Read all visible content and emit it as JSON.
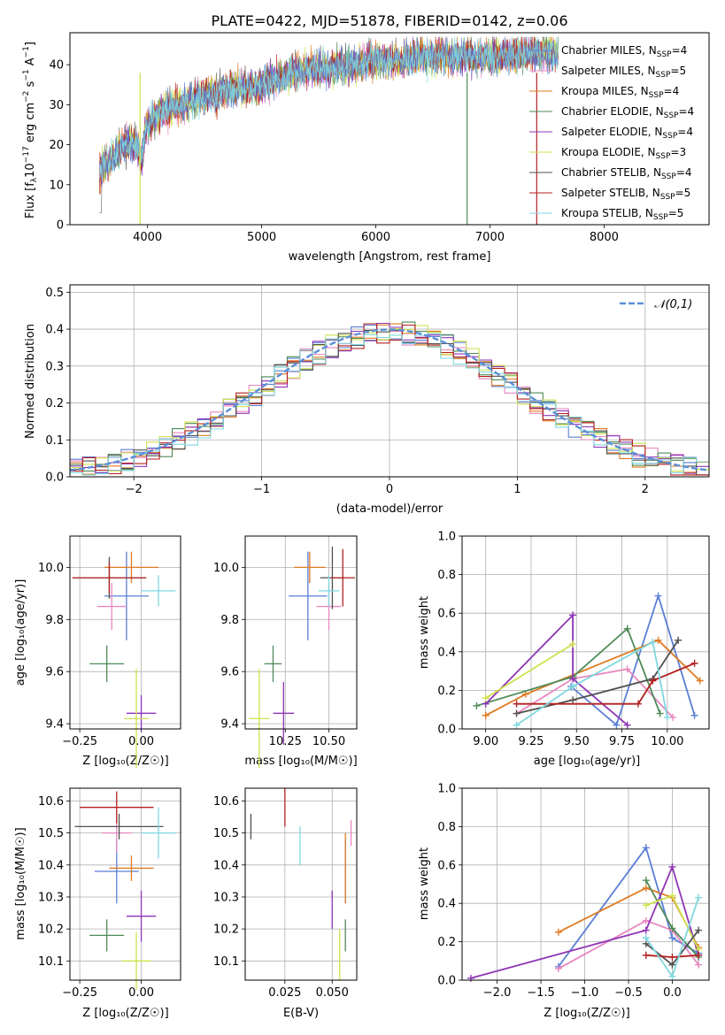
{
  "figure": {
    "title": "PLATE=0422, MJD=51878, FIBERID=0142, z=0.06"
  },
  "models": [
    {
      "label": "Chabrier MILES, N_SSP=4",
      "lib": "Chabrier MILES",
      "n": "4",
      "color": "#5b7fd6"
    },
    {
      "label": "Salpeter MILES, N_SSP=5",
      "lib": "Salpeter MILES",
      "n": "5",
      "color": "#e887c0"
    },
    {
      "label": "Kroupa MILES, N_SSP=4",
      "lib": "Kroupa MILES",
      "n": "4",
      "color": "#e07b22"
    },
    {
      "label": "Chabrier ELODIE, N_SSP=4",
      "lib": "Chabrier ELODIE",
      "n": "4",
      "color": "#4e8a57"
    },
    {
      "label": "Salpeter ELODIE, N_SSP=4",
      "lib": "Salpeter ELODIE",
      "n": "4",
      "color": "#8f35b6"
    },
    {
      "label": "Kroupa ELODIE, N_SSP=3",
      "lib": "Kroupa ELODIE",
      "n": "3",
      "color": "#cfe24e"
    },
    {
      "label": "Chabrier STELIB, N_SSP=4",
      "lib": "Chabrier STELIB",
      "n": "4",
      "color": "#505050"
    },
    {
      "label": "Salpeter STELIB, N_SSP=5",
      "lib": "Salpeter STELIB",
      "n": "5",
      "color": "#b22020"
    },
    {
      "label": "Kroupa STELIB, N_SSP=5",
      "lib": "Kroupa STELIB",
      "n": "5",
      "color": "#7fd8e0"
    }
  ],
  "chart_data": [
    {
      "id": "spectrum",
      "type": "line",
      "xlabel": "wavelength [Angstrom, rest frame]",
      "ylabel": "Flux [f_λ 10^-17 erg cm^-2 s^-1 A^-1]",
      "xlim": [
        3320,
        8920
      ],
      "ylim": [
        0,
        48
      ],
      "xticks": [
        4000,
        5000,
        6000,
        7000,
        8000
      ],
      "yticks": [
        0,
        10,
        20,
        30,
        40
      ],
      "continuum": [
        [
          3580,
          14
        ],
        [
          3700,
          17
        ],
        [
          3800,
          20
        ],
        [
          3900,
          20
        ],
        [
          3950,
          16
        ],
        [
          3980,
          24
        ],
        [
          4100,
          28
        ],
        [
          4300,
          30
        ],
        [
          4500,
          32
        ],
        [
          4700,
          34
        ],
        [
          4900,
          34
        ],
        [
          5000,
          35
        ],
        [
          5200,
          37
        ],
        [
          5400,
          39
        ],
        [
          5600,
          39
        ],
        [
          5800,
          40
        ],
        [
          6000,
          41
        ],
        [
          6200,
          41
        ],
        [
          6400,
          42
        ],
        [
          6600,
          42
        ],
        [
          6800,
          42
        ],
        [
          7000,
          42
        ],
        [
          7200,
          42
        ],
        [
          7400,
          43
        ],
        [
          7500,
          43
        ],
        [
          7600,
          43
        ]
      ],
      "spikes": [
        {
          "x": 3935,
          "y": 0,
          "color": "#cfe24e"
        },
        {
          "x": 6800,
          "y": 0,
          "color": "#4e8a57"
        },
        {
          "x": 7410,
          "y": 0,
          "color": "#b22020"
        }
      ],
      "legend": "upper right",
      "grid": false
    },
    {
      "id": "residuals",
      "type": "histogram",
      "xlabel": "(data-model)/error",
      "ylabel": "Normed distribution",
      "xlim": [
        -2.5,
        2.5
      ],
      "ylim": [
        0,
        0.52
      ],
      "xticks": [
        -2,
        -1,
        0,
        1,
        2
      ],
      "yticks": [
        0,
        0.1,
        0.2,
        0.3,
        0.4,
        0.5
      ],
      "bin_width": 0.1,
      "reference_curve": {
        "name": "𝒩(0,1)",
        "color": "#5b8fd6",
        "mean": 0,
        "sigma": 1
      },
      "legend": "upper right",
      "grid": true
    },
    {
      "id": "age_vs_Z",
      "type": "errorbar",
      "xlabel": "Z [log₁₀(Z/Z☉)]",
      "ylabel": "age  [log₁₀(age/yr)]",
      "xlim": [
        -0.29,
        0.16
      ],
      "ylim": [
        9.38,
        10.12
      ],
      "xticks": [
        -0.25,
        0.0
      ],
      "yticks": [
        9.4,
        9.6,
        9.8,
        10.0
      ],
      "points": [
        {
          "m": 0,
          "x": -0.06,
          "xe": 0.09,
          "y": 9.89,
          "ye": 0.17
        },
        {
          "m": 1,
          "x": -0.12,
          "xe": 0.06,
          "y": 9.85,
          "ye": 0.09
        },
        {
          "m": 2,
          "x": -0.04,
          "xe": 0.11,
          "y": 10.0,
          "ye": 0.06
        },
        {
          "m": 3,
          "x": -0.14,
          "xe": 0.07,
          "y": 9.63,
          "ye": 0.07
        },
        {
          "m": 4,
          "x": 0.0,
          "xe": 0.06,
          "y": 9.44,
          "ye": 0.07
        },
        {
          "m": 5,
          "x": -0.02,
          "xe": 0.05,
          "y": 9.42,
          "ye": 0.19
        },
        {
          "m": 6,
          "x": -0.13,
          "xe": 0.15,
          "y": 9.96,
          "ye": 0.08
        },
        {
          "m": 7,
          "x": -0.13,
          "xe": 0.15,
          "y": 9.96,
          "ye": 0.06
        },
        {
          "m": 8,
          "x": 0.07,
          "xe": 0.07,
          "y": 9.91,
          "ye": 0.06
        }
      ]
    },
    {
      "id": "age_vs_mass",
      "type": "errorbar",
      "xlabel": "mass [log₁₀(M/M☉)]",
      "ylabel": "",
      "xlim": [
        10.02,
        10.66
      ],
      "ylim": [
        9.38,
        10.12
      ],
      "xticks": [
        10.25,
        10.5
      ],
      "yticks": [
        9.4,
        9.6,
        9.8,
        10.0
      ],
      "points": [
        {
          "m": 0,
          "x": 10.38,
          "xe": 0.11,
          "y": 9.89,
          "ye": 0.17
        },
        {
          "m": 1,
          "x": 10.5,
          "xe": 0.07,
          "y": 9.85,
          "ye": 0.09
        },
        {
          "m": 2,
          "x": 10.39,
          "xe": 0.09,
          "y": 10.0,
          "ye": 0.06
        },
        {
          "m": 3,
          "x": 10.18,
          "xe": 0.05,
          "y": 9.63,
          "ye": 0.07
        },
        {
          "m": 4,
          "x": 10.24,
          "xe": 0.06,
          "y": 9.44,
          "ye": 0.12
        },
        {
          "m": 5,
          "x": 10.1,
          "xe": 0.06,
          "y": 9.42,
          "ye": 0.19
        },
        {
          "m": 6,
          "x": 10.52,
          "xe": 0.07,
          "y": 9.96,
          "ye": 0.12
        },
        {
          "m": 7,
          "x": 10.58,
          "xe": 0.07,
          "y": 9.96,
          "ye": 0.11
        },
        {
          "m": 8,
          "x": 10.5,
          "xe": 0.06,
          "y": 9.91,
          "ye": 0.06
        }
      ]
    },
    {
      "id": "weight_vs_age",
      "type": "line",
      "xlabel": "age  [log₁₀(age/yr)]",
      "ylabel": "mass weight",
      "xlim": [
        8.87,
        10.23
      ],
      "ylim": [
        0,
        1.0
      ],
      "xticks": [
        9.0,
        9.25,
        9.5,
        9.75,
        10.0
      ],
      "yticks": [
        0.0,
        0.2,
        0.4,
        0.6,
        0.8,
        1.0
      ],
      "grid": true,
      "series": [
        {
          "m": 0,
          "x": [
            9.47,
            9.72,
            9.95,
            10.15
          ],
          "y": [
            0.22,
            0.02,
            0.69,
            0.07
          ]
        },
        {
          "m": 1,
          "x": [
            9.17,
            9.48,
            9.78,
            10.03
          ],
          "y": [
            0.08,
            0.26,
            0.31,
            0.06
          ]
        },
        {
          "m": 2,
          "x": [
            9.0,
            9.22,
            9.95,
            10.18
          ],
          "y": [
            0.07,
            0.18,
            0.46,
            0.25
          ]
        },
        {
          "m": 3,
          "x": [
            8.95,
            9.48,
            9.78,
            9.96
          ],
          "y": [
            0.12,
            0.27,
            0.52,
            0.08
          ]
        },
        {
          "m": 4,
          "x": [
            9.0,
            9.48,
            9.48,
            9.78
          ],
          "y": [
            0.13,
            0.59,
            0.26,
            0.02
          ]
        },
        {
          "m": 5,
          "x": [
            9.0,
            9.48
          ],
          "y": [
            0.16,
            0.44
          ]
        },
        {
          "m": 6,
          "x": [
            9.17,
            9.48,
            9.92,
            10.06
          ],
          "y": [
            0.08,
            0.15,
            0.26,
            0.46
          ]
        },
        {
          "m": 7,
          "x": [
            9.17,
            9.84,
            9.92,
            10.15
          ],
          "y": [
            0.13,
            0.13,
            0.25,
            0.34
          ]
        },
        {
          "m": 8,
          "x": [
            9.17,
            9.48,
            9.92,
            10.0
          ],
          "y": [
            0.02,
            0.22,
            0.45,
            0.06
          ]
        }
      ]
    },
    {
      "id": "mass_vs_Z",
      "type": "errorbar",
      "xlabel": "Z [log₁₀(Z/Z☉)]",
      "ylabel": "mass [log₁₀(M/M☉)]",
      "xlim": [
        -0.29,
        0.16
      ],
      "ylim": [
        10.04,
        10.64
      ],
      "xticks": [
        -0.25,
        0.0
      ],
      "yticks": [
        10.1,
        10.2,
        10.3,
        10.4,
        10.5,
        10.6
      ],
      "points": [
        {
          "m": 0,
          "x": -0.1,
          "xe": 0.09,
          "y": 10.38,
          "ye": 0.1
        },
        {
          "m": 1,
          "x": -0.1,
          "xe": 0.06,
          "y": 10.5,
          "ye": 0.06
        },
        {
          "m": 2,
          "x": -0.04,
          "xe": 0.09,
          "y": 10.39,
          "ye": 0.04
        },
        {
          "m": 3,
          "x": -0.14,
          "xe": 0.07,
          "y": 10.18,
          "ye": 0.05
        },
        {
          "m": 4,
          "x": 0.0,
          "xe": 0.06,
          "y": 10.24,
          "ye": 0.08
        },
        {
          "m": 5,
          "x": -0.02,
          "xe": 0.06,
          "y": 10.1,
          "ye": 0.09
        },
        {
          "m": 6,
          "x": -0.09,
          "xe": 0.18,
          "y": 10.52,
          "ye": 0.04
        },
        {
          "m": 7,
          "x": -0.1,
          "xe": 0.15,
          "y": 10.58,
          "ye": 0.05
        },
        {
          "m": 8,
          "x": 0.07,
          "xe": 0.07,
          "y": 10.5,
          "ye": 0.08
        }
      ]
    },
    {
      "id": "mass_vs_EBV",
      "type": "errorbar",
      "xlabel": "E(B-V)",
      "ylabel": "",
      "xlim": [
        0.004,
        0.063
      ],
      "ylim": [
        10.04,
        10.64
      ],
      "xticks": [
        0.025,
        0.05
      ],
      "yticks": [
        10.1,
        10.2,
        10.3,
        10.4,
        10.5,
        10.6
      ],
      "points": [
        {
          "m": 0,
          "x": 0.057,
          "xe": 0,
          "y": 10.38,
          "ye": 0.1
        },
        {
          "m": 1,
          "x": 0.06,
          "xe": 0,
          "y": 10.5,
          "ye": 0.04
        },
        {
          "m": 2,
          "x": 0.057,
          "xe": 0,
          "y": 10.39,
          "ye": 0.11
        },
        {
          "m": 3,
          "x": 0.057,
          "xe": 0,
          "y": 10.18,
          "ye": 0.05
        },
        {
          "m": 4,
          "x": 0.05,
          "xe": 0,
          "y": 10.26,
          "ye": 0.06
        },
        {
          "m": 5,
          "x": 0.054,
          "xe": 0,
          "y": 10.12,
          "ye": 0.08
        },
        {
          "m": 6,
          "x": 0.007,
          "xe": 0,
          "y": 10.52,
          "ye": 0.04
        },
        {
          "m": 7,
          "x": 0.025,
          "xe": 0,
          "y": 10.58,
          "ye": 0.06
        },
        {
          "m": 8,
          "x": 0.033,
          "xe": 0,
          "y": 10.46,
          "ye": 0.06
        }
      ]
    },
    {
      "id": "weight_vs_Z",
      "type": "line",
      "xlabel": "Z [log₁₀(Z/Z☉)]",
      "ylabel": "mass weight",
      "xlim": [
        -2.4,
        0.42
      ],
      "ylim": [
        0,
        1.0
      ],
      "xticks": [
        -2.0,
        -1.5,
        -1.0,
        -0.5,
        0.0
      ],
      "yticks": [
        0.0,
        0.2,
        0.4,
        0.6,
        0.8,
        1.0
      ],
      "grid": true,
      "series": [
        {
          "m": 0,
          "x": [
            -1.3,
            -0.3,
            0.0,
            0.3
          ],
          "y": [
            0.07,
            0.69,
            0.22,
            0.14
          ]
        },
        {
          "m": 1,
          "x": [
            -1.3,
            -0.3,
            0.0,
            0.3
          ],
          "y": [
            0.06,
            0.31,
            0.26,
            0.08
          ]
        },
        {
          "m": 2,
          "x": [
            -1.3,
            -0.3,
            0.0,
            0.3
          ],
          "y": [
            0.25,
            0.48,
            0.43,
            0.17
          ]
        },
        {
          "m": 3,
          "x": [
            -0.3,
            0.0,
            0.3
          ],
          "y": [
            0.52,
            0.27,
            0.12
          ]
        },
        {
          "m": 4,
          "x": [
            -2.3,
            -0.3,
            0.0,
            0.3
          ],
          "y": [
            0.01,
            0.26,
            0.59,
            0.13
          ]
        },
        {
          "m": 5,
          "x": [
            -0.3,
            0.0,
            0.3
          ],
          "y": [
            0.39,
            0.44,
            0.16
          ]
        },
        {
          "m": 6,
          "x": [
            -0.3,
            0.0,
            0.3
          ],
          "y": [
            0.19,
            0.08,
            0.26
          ]
        },
        {
          "m": 7,
          "x": [
            -0.3,
            0.0,
            0.3
          ],
          "y": [
            0.13,
            0.12,
            0.13
          ]
        },
        {
          "m": 8,
          "x": [
            -0.3,
            0.0,
            0.3
          ],
          "y": [
            0.22,
            0.02,
            0.43
          ]
        }
      ]
    }
  ]
}
